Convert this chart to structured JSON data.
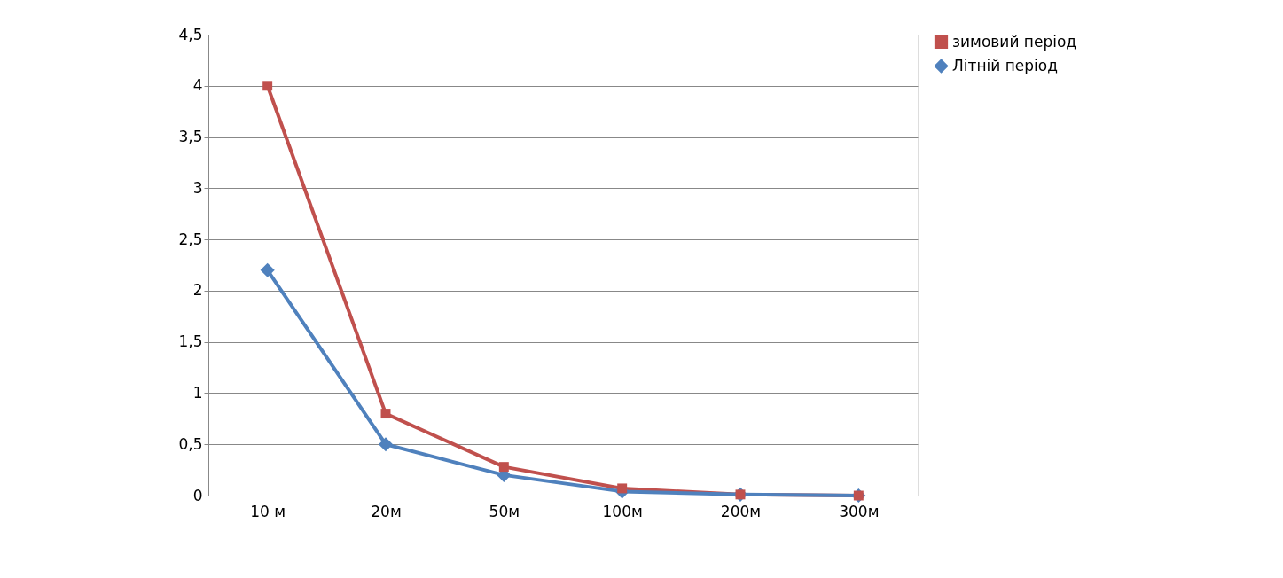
{
  "chart_data": {
    "type": "line",
    "categories": [
      "10 м",
      "20м",
      "50м",
      "100м",
      "200м",
      "300м"
    ],
    "series": [
      {
        "name": "зимовий період",
        "color": "#c0504d",
        "marker": "square",
        "values": [
          4,
          0.8,
          0.28,
          0.07,
          0.01,
          0
        ]
      },
      {
        "name": "Літній період",
        "color": "#4f81bd",
        "marker": "diamond",
        "values": [
          2.2,
          0.5,
          0.2,
          0.04,
          0.01,
          0
        ]
      }
    ],
    "ylim": [
      0,
      4.5
    ],
    "yticks": [
      0,
      {
        "value": 0.5,
        "label": "0,5"
      },
      1,
      {
        "value": 1.5,
        "label": "1,5"
      },
      2,
      {
        "value": 2.5,
        "label": "2,5"
      },
      3,
      {
        "value": 3.5,
        "label": "3,5"
      },
      4,
      {
        "value": 4.5,
        "label": "4,5"
      }
    ],
    "grid": "y",
    "legend": "right",
    "line_style": "solid"
  }
}
